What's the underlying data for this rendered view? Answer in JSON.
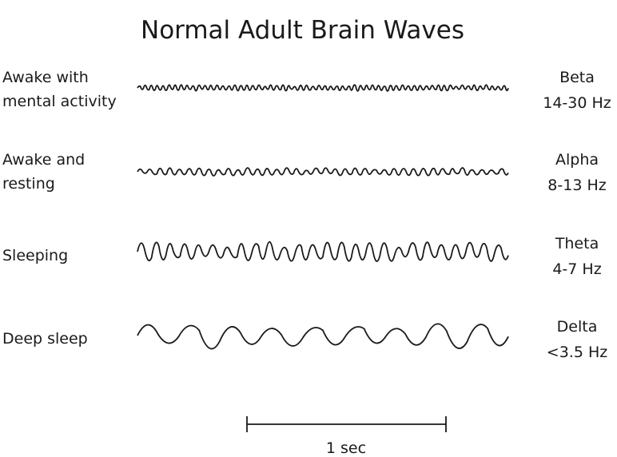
{
  "title": "Normal Adult Brain Waves",
  "rows": [
    {
      "state": [
        "Awake with",
        "mental activity"
      ],
      "band": "Beta",
      "range": "14-30 Hz"
    },
    {
      "state": [
        "Awake and",
        "resting"
      ],
      "band": "Alpha",
      "range": "8-13 Hz"
    },
    {
      "state": [
        "Sleeping"
      ],
      "band": "Theta",
      "range": "4-7 Hz"
    },
    {
      "state": [
        "Deep sleep"
      ],
      "band": "Delta",
      "range": "<3.5 Hz"
    }
  ],
  "scale_bar": {
    "label": "1 sec"
  },
  "line_color": "#1a1a1a"
}
